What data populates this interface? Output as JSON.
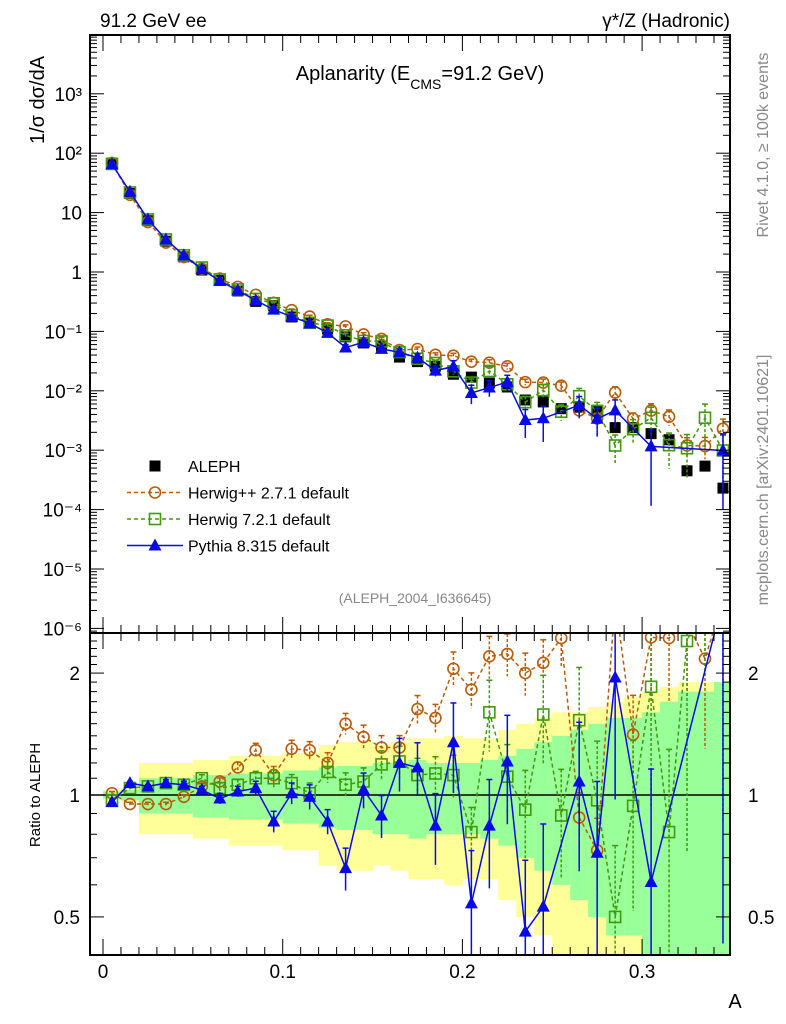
{
  "header": {
    "left": "91.2 GeV ee",
    "right": "γ*/Z (Hadronic)",
    "rivet": "Rivet 4.1.0, ≥ 100k events",
    "mcplots": "mcplots.cern.ch [arXiv:2401.10621]"
  },
  "chart_data": [
    {
      "type": "line",
      "panel": "main",
      "title_main": "Aplanarity (E",
      "title_sub": "CMS",
      "title_end": "=91.2 GeV)",
      "ylabel": "1/σ  dσ/dA",
      "analysis": "(ALEPH_2004_I636645)",
      "yscale": "log",
      "ylim": [
        8.5e-07,
        11000
      ],
      "xlim": [
        -0.007,
        0.349
      ],
      "ytick_values": [
        1000,
        100,
        10,
        1,
        0.1,
        0.01,
        0.001,
        0.0001,
        1e-05,
        1e-06
      ],
      "ytick_labels": [
        "10³",
        "10²",
        "10",
        "1",
        "10⁻¹",
        "10⁻²",
        "10⁻³",
        "10⁻⁴",
        "10⁻⁵",
        "10⁻⁶"
      ],
      "legend_position": "lower-left",
      "x": [
        0.005,
        0.015,
        0.025,
        0.035,
        0.045,
        0.055,
        0.065,
        0.075,
        0.085,
        0.095,
        0.105,
        0.115,
        0.125,
        0.135,
        0.145,
        0.155,
        0.165,
        0.175,
        0.185,
        0.195,
        0.205,
        0.215,
        0.225,
        0.235,
        0.245,
        0.255,
        0.265,
        0.275,
        0.285,
        0.295,
        0.305,
        0.315,
        0.325,
        0.335,
        0.345
      ],
      "data": {
        "name": "ALEPH",
        "color": "#000000",
        "values": [
          68,
          21,
          7.3,
          3.3,
          1.8,
          1.08,
          0.72,
          0.48,
          0.32,
          0.27,
          0.175,
          0.138,
          0.11,
          0.081,
          0.064,
          0.057,
          0.037,
          0.031,
          0.026,
          0.019,
          0.017,
          0.0135,
          0.0116,
          0.007,
          0.0065,
          0.005,
          0.0053,
          0.0047,
          0.0024,
          0.0024,
          0.0019,
          0.0015,
          0.00045,
          0.00054,
          0.00023
        ],
        "band_inner_rel": [
          0.02,
          0.03,
          0.1,
          0.1,
          0.1,
          0.12,
          0.12,
          0.13,
          0.13,
          0.13,
          0.15,
          0.15,
          0.17,
          0.18,
          0.18,
          0.2,
          0.2,
          0.22,
          0.2,
          0.2,
          0.2,
          0.22,
          0.25,
          0.3,
          0.35,
          0.4,
          0.45,
          0.5,
          0.55,
          0.55,
          0.6,
          0.7,
          0.8,
          0.8,
          0.9
        ],
        "band_outer_rel": [
          0.03,
          0.04,
          0.2,
          0.2,
          0.2,
          0.22,
          0.22,
          0.25,
          0.25,
          0.25,
          0.27,
          0.27,
          0.33,
          0.35,
          0.35,
          0.33,
          0.35,
          0.38,
          0.38,
          0.4,
          0.38,
          0.38,
          0.45,
          0.5,
          0.55,
          0.6,
          0.6,
          0.65,
          0.7,
          0.75,
          0.8,
          0.85,
          0.9,
          0.9,
          0.9
        ]
      },
      "series": [
        {
          "name": "Herwig++ 2.7.1 default",
          "color": "#b85c0a",
          "marker": "open-circle",
          "line": "dashed",
          "ratio_to_ALEPH": [
            1.01,
            0.95,
            0.95,
            0.95,
            0.99,
            1.05,
            1.08,
            1.17,
            1.29,
            1.12,
            1.3,
            1.29,
            1.2,
            1.5,
            1.39,
            1.31,
            1.31,
            1.63,
            1.55,
            2.05,
            1.82,
            2.2,
            2.23,
            2.0,
            2.12,
            2.44,
            0.88,
            0.73,
            3.9,
            1.41,
            2.45,
            2.44,
            2.67,
            2.17,
            10
          ],
          "rel_err": [
            0.01,
            0.01,
            0.01,
            0.01,
            0.01,
            0.02,
            0.02,
            0.03,
            0.04,
            0.05,
            0.05,
            0.05,
            0.06,
            0.06,
            0.07,
            0.07,
            0.07,
            0.08,
            0.08,
            0.1,
            0.1,
            0.12,
            0.12,
            0.12,
            0.14,
            0.15,
            0.15,
            0.2,
            0.25,
            0.25,
            0.3,
            0.3,
            0.35,
            0.4,
            0.45
          ]
        },
        {
          "name": "Herwig 7.2.1 default",
          "color": "#3f9a0c",
          "marker": "open-square",
          "line": "dashed",
          "ratio_to_ALEPH": [
            0.97,
            1.04,
            1.05,
            1.07,
            1.06,
            1.1,
            1.04,
            1.06,
            1.1,
            1.1,
            1.07,
            1.01,
            1.14,
            1.06,
            1.08,
            1.19,
            1.21,
            1.12,
            1.13,
            1.12,
            0.81,
            1.6,
            1.11,
            0.92,
            1.58,
            0.89,
            1.53,
            0.97,
            0.5,
            0.94,
            1.85,
            0.81,
            2.4,
            6.5,
            4.3
          ],
          "rel_err": [
            0.01,
            0.01,
            0.01,
            0.01,
            0.02,
            0.02,
            0.03,
            0.03,
            0.04,
            0.05,
            0.05,
            0.06,
            0.06,
            0.07,
            0.08,
            0.08,
            0.09,
            0.1,
            0.1,
            0.12,
            0.15,
            0.2,
            0.2,
            0.25,
            0.25,
            0.3,
            0.35,
            0.4,
            0.5,
            0.45,
            0.5,
            0.6,
            0.7,
            0.7,
            0.8
          ]
        },
        {
          "name": "Pythia 8.315 default",
          "color": "#0a0ae6",
          "marker": "filled-triangle",
          "line": "solid",
          "ratio_to_ALEPH": [
            0.96,
            1.07,
            1.05,
            1.07,
            1.06,
            1.03,
            0.98,
            1.02,
            1.04,
            0.86,
            1.01,
            0.99,
            0.86,
            0.66,
            1.03,
            0.89,
            1.2,
            1.17,
            0.84,
            1.35,
            0.54,
            0.84,
            1.21,
            0.46,
            0.53,
            null,
            1.08,
            0.72,
            1.95,
            null,
            0.61,
            null,
            null,
            null,
            4.3
          ],
          "rel_err": [
            0.01,
            0.01,
            0.01,
            0.02,
            0.02,
            0.02,
            0.03,
            0.03,
            0.04,
            0.06,
            0.06,
            0.07,
            0.07,
            0.12,
            0.1,
            0.12,
            0.15,
            0.15,
            0.2,
            0.25,
            0.35,
            0.3,
            0.3,
            0.5,
            0.6,
            0,
            0.4,
            0.5,
            0.5,
            0,
            0.9,
            0,
            0,
            0,
            0.9
          ]
        }
      ]
    },
    {
      "type": "line",
      "panel": "ratio",
      "ylabel": "Ratio to ALEPH",
      "yscale": "log",
      "ylim": [
        0.4,
        2.48
      ],
      "reference_line": 1,
      "ytick_values": [
        2,
        1,
        0.5
      ],
      "ytick_labels": [
        "2",
        "1",
        "0.5"
      ],
      "xlabel": "A",
      "xtick_values": [
        0,
        0.1,
        0.2,
        0.3
      ],
      "xtick_labels": [
        "0",
        "0.1",
        "0.2",
        "0.3"
      ],
      "series_source": "panel main series ratio_to_ALEPH"
    }
  ]
}
